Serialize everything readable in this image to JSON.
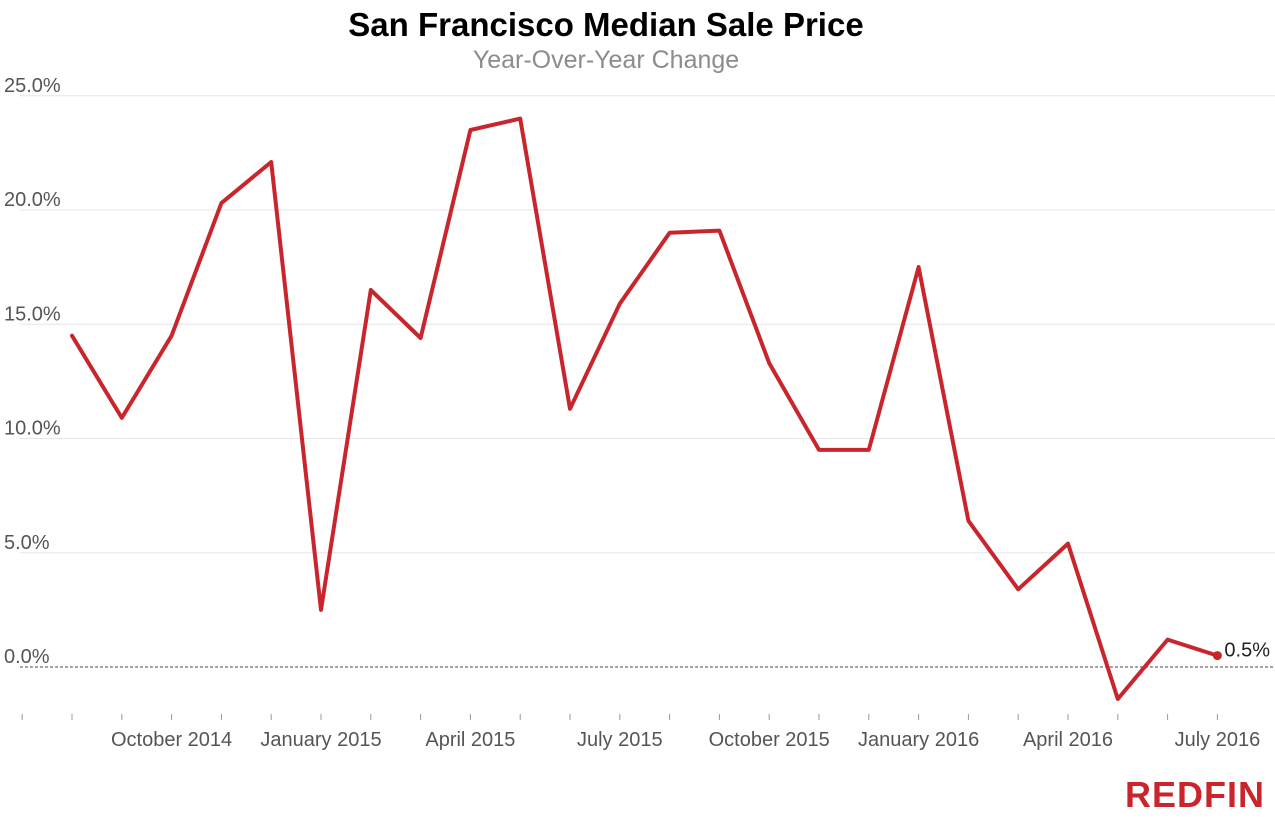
{
  "colors": {
    "line": "#c8262c",
    "grid": "#e6e6e6",
    "zero_line": "#444444",
    "logo": "#c8262c"
  },
  "brand": {
    "logo_text": "REDFIN"
  },
  "chart_data": {
    "type": "line",
    "title": "San Francisco Median Sale Price",
    "subtitle": "Year-Over-Year Change",
    "xlabel": "",
    "ylabel": "",
    "ylim": [
      -2,
      25
    ],
    "y_ticks": [
      0,
      5,
      10,
      15,
      20,
      25
    ],
    "y_tick_labels": [
      "0.0%",
      "5.0%",
      "10.0%",
      "15.0%",
      "20.0%",
      "25.0%"
    ],
    "grid": true,
    "x": [
      "2014-08",
      "2014-09",
      "2014-10",
      "2014-11",
      "2014-12",
      "2015-01",
      "2015-02",
      "2015-03",
      "2015-04",
      "2015-05",
      "2015-06",
      "2015-07",
      "2015-08",
      "2015-09",
      "2015-10",
      "2015-11",
      "2015-12",
      "2016-01",
      "2016-02",
      "2016-03",
      "2016-04",
      "2016-05",
      "2016-06",
      "2016-07"
    ],
    "x_tick_labels": [
      {
        "x": "2014-10",
        "label": "October 2014"
      },
      {
        "x": "2015-01",
        "label": "January 2015"
      },
      {
        "x": "2015-04",
        "label": "April 2015"
      },
      {
        "x": "2015-07",
        "label": "July 2015"
      },
      {
        "x": "2015-10",
        "label": "October 2015"
      },
      {
        "x": "2016-01",
        "label": "January 2016"
      },
      {
        "x": "2016-04",
        "label": "April 2016"
      },
      {
        "x": "2016-07",
        "label": "July 2016"
      }
    ],
    "series": [
      {
        "values": [
          14.5,
          10.9,
          14.5,
          20.3,
          22.1,
          2.5,
          16.5,
          14.4,
          23.5,
          24.0,
          11.3,
          15.9,
          19.0,
          19.1,
          13.3,
          9.5,
          9.5,
          17.5,
          6.4,
          3.4,
          5.4,
          -1.4,
          1.2,
          0.5
        ]
      }
    ],
    "end_label": "0.5%",
    "legend": "none"
  }
}
